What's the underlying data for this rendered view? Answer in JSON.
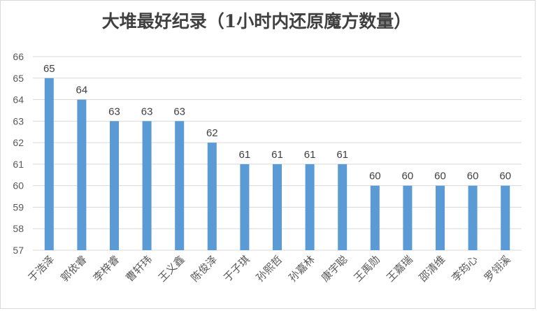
{
  "chart_data": {
    "type": "bar",
    "title": "大堆最好纪录（1小时内还原魔方数量）",
    "xlabel": "",
    "ylabel": "",
    "categories": [
      "于浩泽",
      "郭依睿",
      "李梓睿",
      "曹轩玮",
      "王义鑫",
      "陈俊泽",
      "于子琪",
      "孙熙哲",
      "孙嘉林",
      "康宇聪",
      "王禹勋",
      "王嘉瑞",
      "邵清维",
      "李筠心",
      "罗翎溪"
    ],
    "values": [
      65,
      64,
      63,
      63,
      63,
      62,
      61,
      61,
      61,
      61,
      60,
      60,
      60,
      60,
      60
    ],
    "ylim": [
      57,
      66
    ],
    "yticks": [
      "57",
      "58",
      "59",
      "60",
      "61",
      "62",
      "63",
      "64",
      "65",
      "66"
    ],
    "grid": true,
    "legend": "none",
    "bar_color": "#5b9bd5",
    "grid_color": "#d9d9d9"
  }
}
